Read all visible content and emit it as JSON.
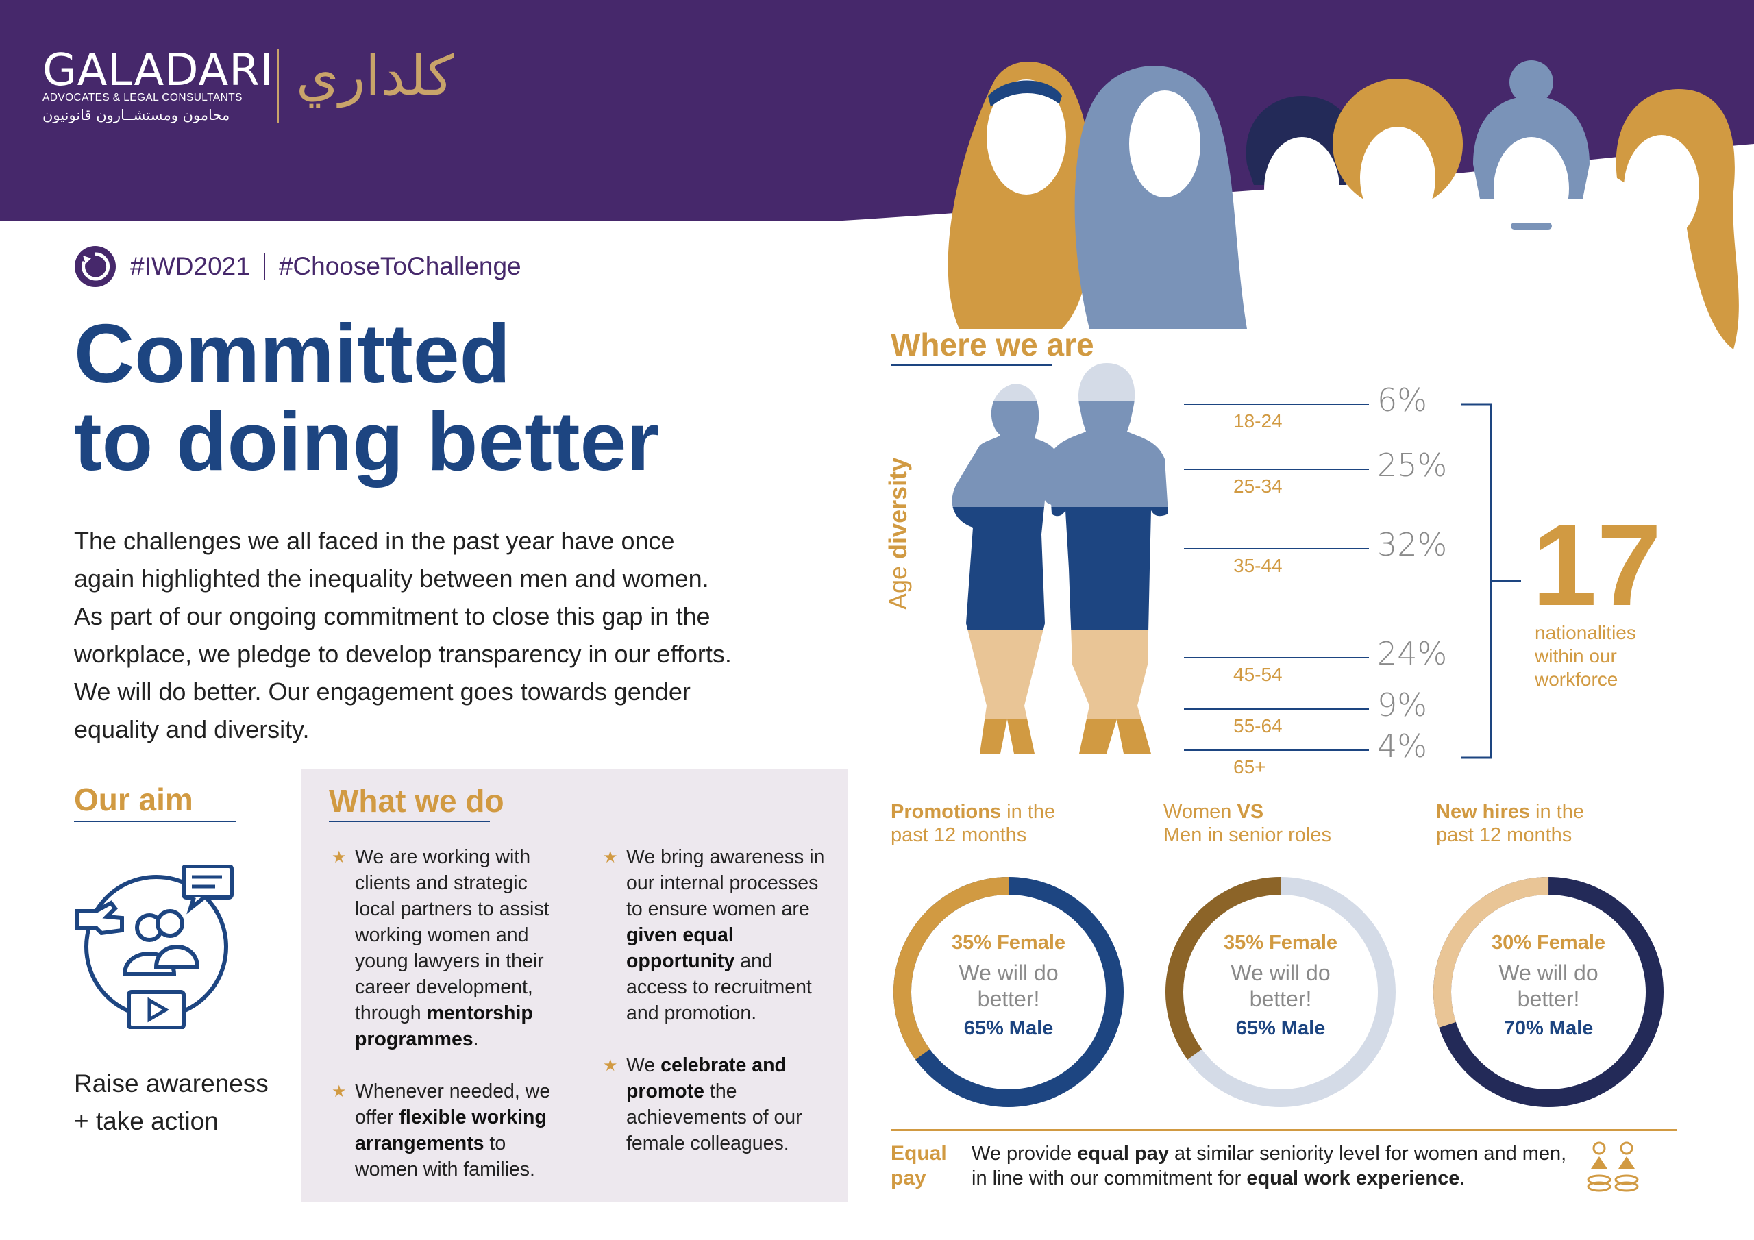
{
  "header": {
    "logo_name": "GALADARI",
    "logo_subtitle": "ADVOCATES & LEGAL CONSULTANTS",
    "logo_arabic_subtitle": "محامون ومستشــارون قانونيون",
    "logo_arabic_mark": "كلداري",
    "background_color": "#46286b"
  },
  "hashtags": [
    "#IWD2021",
    "#ChooseToChallenge"
  ],
  "title_lines": [
    "Committed",
    "to doing better"
  ],
  "intro_lines": [
    "The challenges we all faced in the past year have once",
    "again highlighted the inequality between men and women.",
    "As part of our ongoing commitment to close this gap in the",
    "workplace, we pledge to develop transparency in our efforts.",
    "We will do better. Our engagement goes towards gender",
    "equality and diversity."
  ],
  "aim": {
    "heading": "Our aim",
    "text_lines": [
      "Raise awareness",
      "+ take action"
    ]
  },
  "what_we_do": {
    "heading": "What we do",
    "col1": [
      [
        [
          "We are working with clients and strategic local partners to assist working women and young lawyers in their career development, through ",
          false
        ],
        [
          "mentorship programmes",
          true
        ],
        [
          ".",
          false
        ]
      ],
      [
        [
          "Whenever needed, we offer ",
          false
        ],
        [
          "flexible working arrangements",
          true
        ],
        [
          " to women with families.",
          false
        ]
      ]
    ],
    "col2": [
      [
        [
          "We bring awareness in our internal processes to ensure women are ",
          false
        ],
        [
          "given equal opportunity",
          true
        ],
        [
          " and access to recruitment and promotion.",
          false
        ]
      ],
      [
        [
          "We ",
          false
        ],
        [
          "celebrate and promote",
          true
        ],
        [
          " the achievements of our female colleagues.",
          false
        ]
      ]
    ]
  },
  "where_we_are": {
    "heading": "Where we are",
    "age_axis_label_prefix": "Age ",
    "age_axis_label_bold": "diversity",
    "age_groups": [
      {
        "label": "18-24",
        "percent": "6%"
      },
      {
        "label": "25-34",
        "percent": "25%"
      },
      {
        "label": "35-44",
        "percent": "32%"
      },
      {
        "label": "45-54",
        "percent": "24%"
      },
      {
        "label": "55-64",
        "percent": "9%"
      },
      {
        "label": "65+",
        "percent": "4%"
      }
    ],
    "nationalities_count": "17",
    "nationalities_lines": [
      "nationalities",
      "within our",
      "workforce"
    ]
  },
  "stats": [
    {
      "heading_bold": "Promotions",
      "heading_rest": " in the",
      "heading_line2": "past 12 months",
      "female_label": "35% Female",
      "middle_lines": [
        "We will do",
        "better!"
      ],
      "male_label": "65% Male",
      "female_fraction": 0.35,
      "female_color": "#d19a42",
      "male_color": "#1d4581"
    },
    {
      "heading_rest_pre": "Women ",
      "heading_bold": "VS",
      "heading_line2": "Men in senior roles",
      "female_label": "35% Female",
      "middle_lines": [
        "We will do",
        "better!"
      ],
      "male_label": "65% Male",
      "female_fraction": 0.35,
      "female_color": "#8c6428",
      "male_color": "#d4dbe7"
    },
    {
      "heading_bold": "New hires",
      "heading_rest": " in the",
      "heading_line2": "past 12 months",
      "female_label": "30% Female",
      "middle_lines": [
        "We will do",
        "better!"
      ],
      "male_label": "70% Male",
      "female_fraction": 0.3,
      "female_color": "#e9c596",
      "male_color": "#232a58"
    }
  ],
  "equal_pay": {
    "heading_lines": [
      "Equal",
      "pay"
    ],
    "line1": [
      [
        "We provide ",
        false
      ],
      [
        "equal pay",
        true
      ],
      [
        " at similar seniority level for women and men,",
        false
      ]
    ],
    "line2": [
      [
        "in line with our commitment for ",
        false
      ],
      [
        "equal work experience",
        true
      ],
      [
        ".",
        false
      ]
    ]
  },
  "colors": {
    "navy": "#1d4581",
    "gold": "#d19a42",
    "purple": "#46286b",
    "light_blue": "#7a93b8"
  }
}
